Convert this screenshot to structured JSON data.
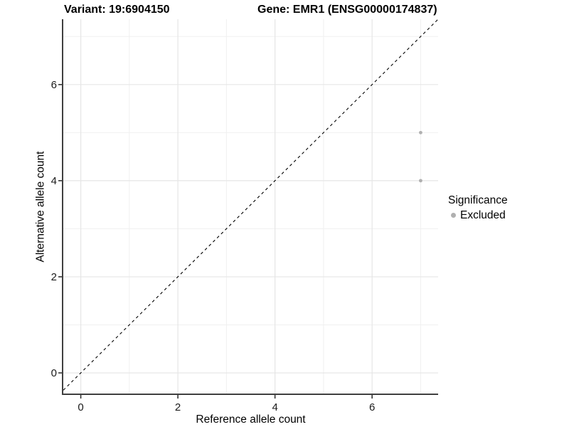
{
  "figure": {
    "background": "#ffffff"
  },
  "chart_data": {
    "type": "scatter",
    "titles": {
      "variant": "Variant: 19:6904150",
      "gene": "Gene: EMR1 (ENSG00000174837)"
    },
    "xlabel": "Reference allele count",
    "ylabel": "Alternative allele count",
    "xlim": [
      -0.36,
      7.36
    ],
    "ylim": [
      -0.43,
      7.36
    ],
    "x_ticks": [
      0,
      2,
      4,
      6
    ],
    "y_ticks": [
      0,
      2,
      4,
      6
    ],
    "x_minor_ticks": [
      1,
      3,
      5,
      7
    ],
    "y_minor_ticks": [
      1,
      3,
      5,
      7
    ],
    "grid": "major and minor gridlines on white panel",
    "reference_line": {
      "kind": "identity y=x",
      "style": "dashed",
      "color": "#000000"
    },
    "series": [
      {
        "name": "Excluded",
        "color": "#b0b0b0",
        "point_radius": 2.4,
        "points": [
          {
            "x": 7,
            "y": 5
          },
          {
            "x": 7,
            "y": 4
          }
        ]
      }
    ],
    "legend": {
      "title": "Significance",
      "position": "right-center",
      "items": [
        {
          "label": "Excluded",
          "color": "#b0b0b0"
        }
      ]
    },
    "colors": {
      "axis_line": "#404040",
      "tick_mark": "#333333",
      "tick_label": "#1a1a1a",
      "grid_major": "#e6e6e6",
      "grid_minor": "#f0f0f0"
    }
  }
}
